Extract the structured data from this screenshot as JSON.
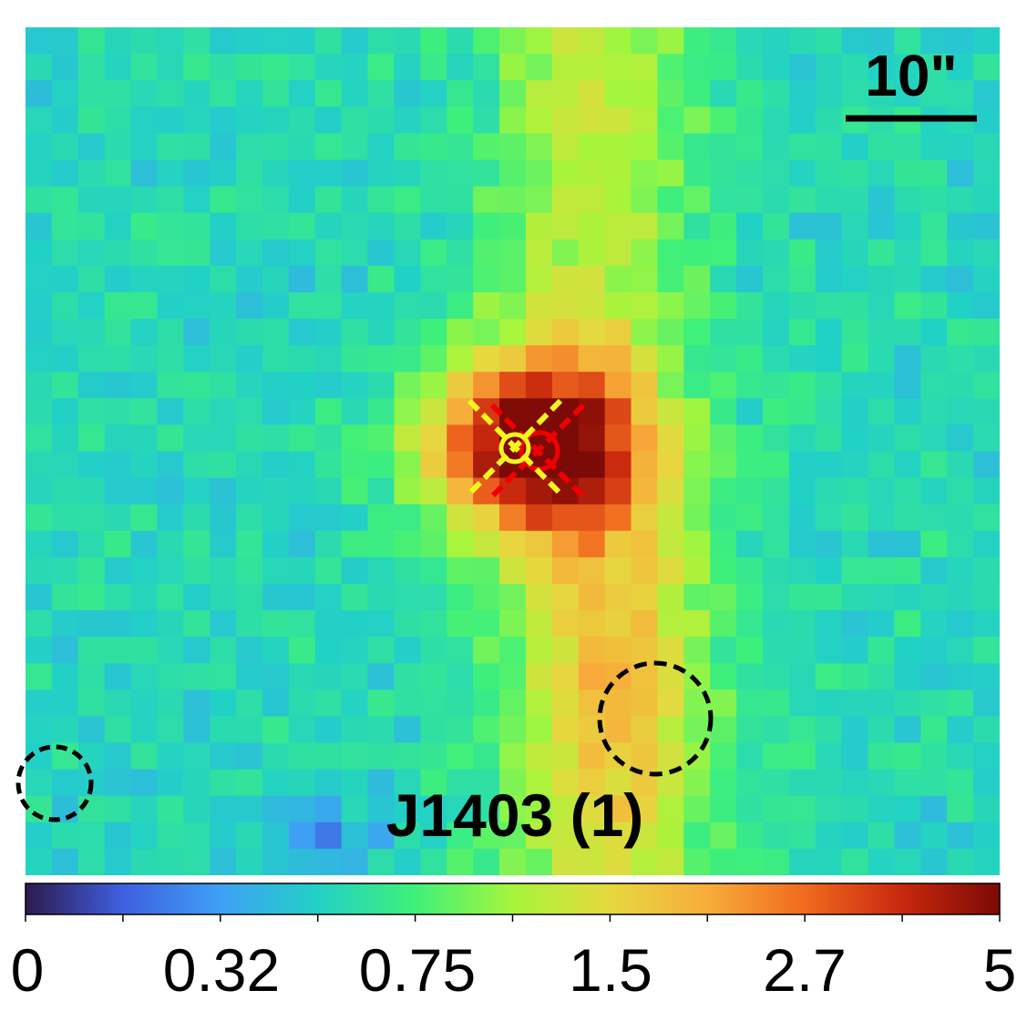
{
  "image": {
    "target_label": "J1403 (1)",
    "scale_bar_label": "10\""
  },
  "colorbar": {
    "tick_labels": [
      "0",
      "0.32",
      "0.75",
      "1.5",
      "2.7",
      "5"
    ],
    "colors": [
      "#2d1b4e",
      "#3f5fe0",
      "#3fa0f5",
      "#22d1c6",
      "#3ff07a",
      "#a6f53c",
      "#e6d83f",
      "#f7ad3a",
      "#f06a1f",
      "#c8280e",
      "#7c0a06"
    ]
  },
  "markers": {
    "optical_color": "#f5f51e",
    "radio_color": "#f00000",
    "aperture_color": "#000000"
  }
}
